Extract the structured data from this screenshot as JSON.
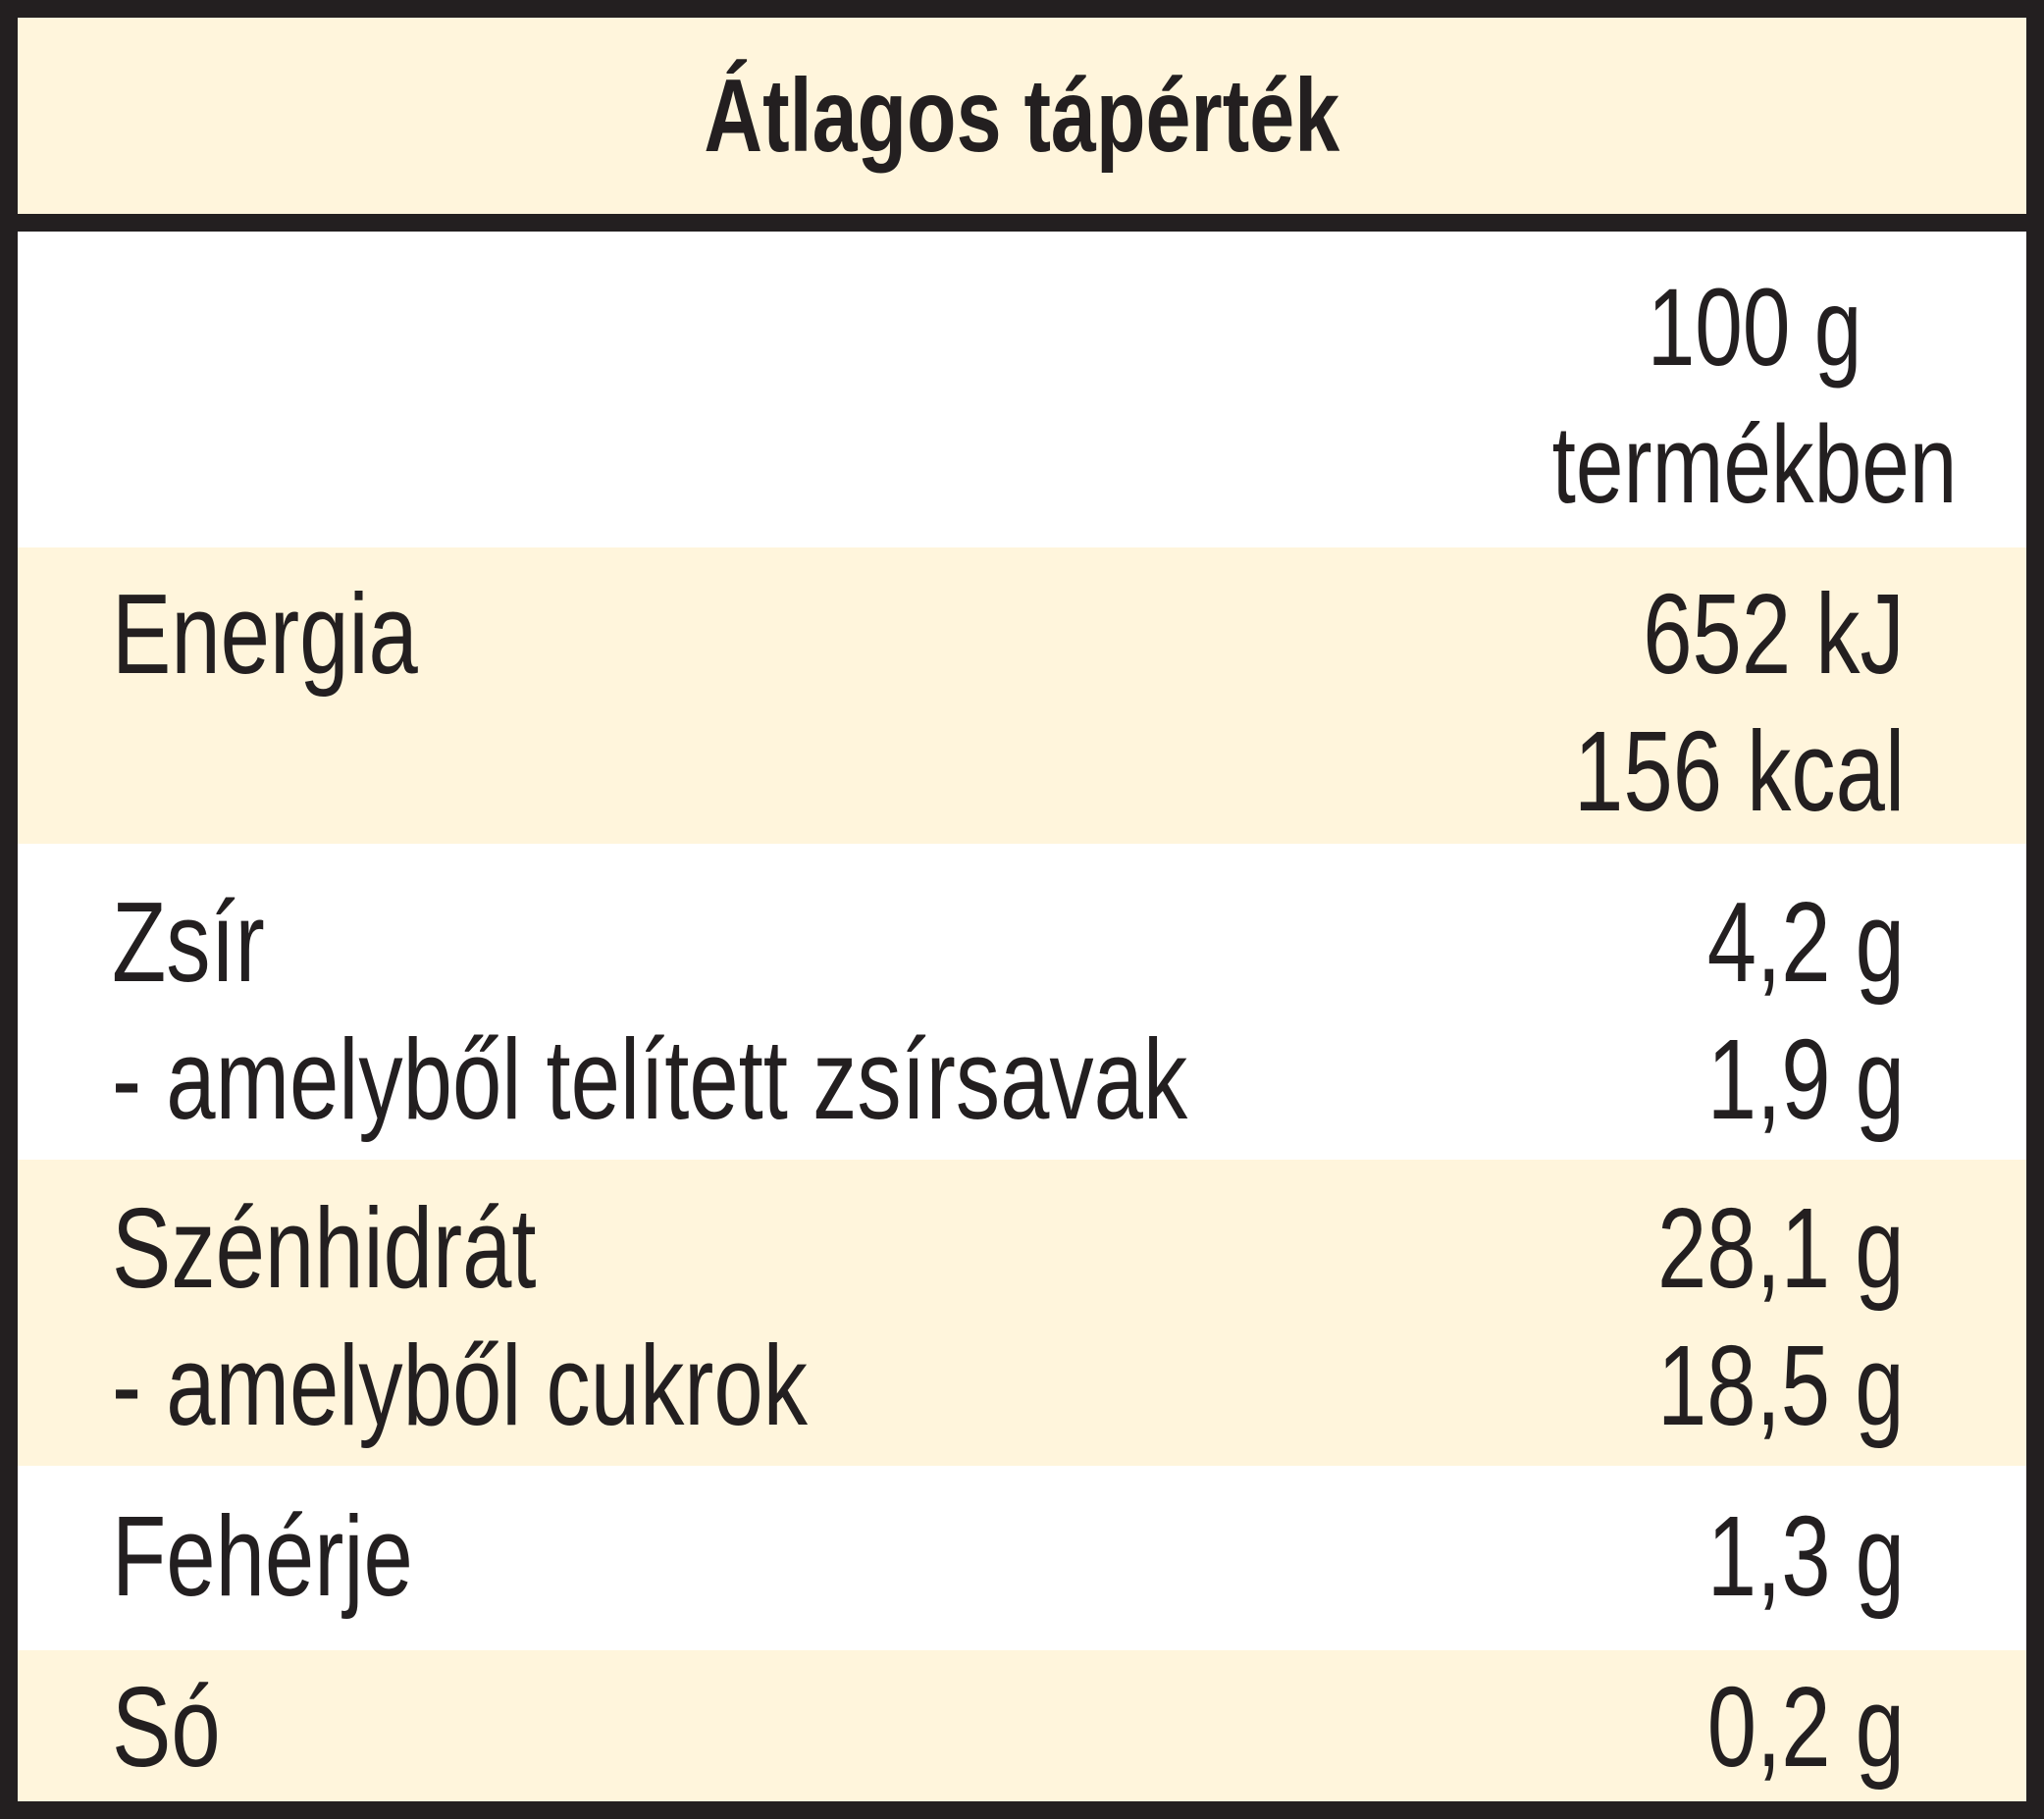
{
  "title": "Átlagos tápérték",
  "column_header": {
    "line1": "100 g",
    "line2": "termékben"
  },
  "rows": [
    {
      "label": "Energia",
      "values": [
        "652 kJ",
        "156 kcal"
      ]
    },
    {
      "label": "Zsír",
      "value": "4,2 g"
    },
    {
      "label": "- amelyből telített zsírsavak",
      "value": "1,9 g"
    },
    {
      "label": "Szénhidrát",
      "value": "28,1 g"
    },
    {
      "label": "- amelyből cukrok",
      "value": "18,5 g"
    },
    {
      "label": "Fehérje",
      "value": "1,3 g"
    },
    {
      "label": "Só",
      "value": "0,2 g"
    }
  ],
  "colors": {
    "cream": "#fff5dc",
    "ink": "#231f20"
  }
}
